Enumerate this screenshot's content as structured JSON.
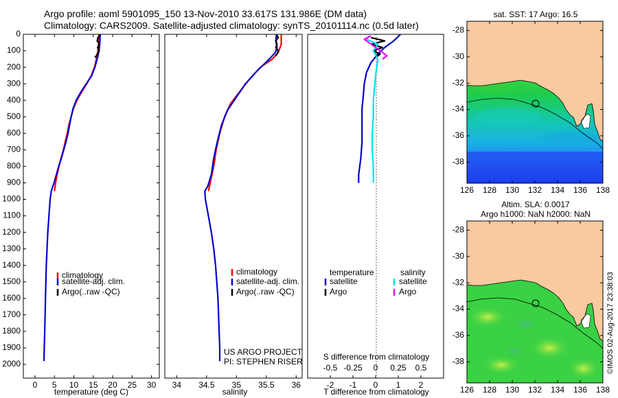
{
  "header": {
    "title_line1": "Argo profile: aoml 5901095_150 13-Nov-2010 33.617S 131.986E (DM data)",
    "title_line2": "Climatology: CARS2009. Satellite-adjusted climatology: synTS_20101114.nc (0.5d later)"
  },
  "panels": {
    "temperature": {
      "xlabel": "temperature (deg C)",
      "xticks": [
        0,
        5,
        10,
        15,
        20,
        25,
        30
      ],
      "xlim": [
        -3,
        32
      ],
      "legend": [
        "climatology",
        "satellite-adj. clim.",
        "Argo(..raw -QC)"
      ]
    },
    "salinity": {
      "xlabel": "salinity",
      "xticks": [
        34,
        34.5,
        35,
        35.5,
        36
      ],
      "xlim": [
        33.8,
        36.1
      ],
      "legend": [
        "climatology",
        "satellite-adj. clim.",
        "Argo(..raw -QC)"
      ],
      "credit_line1": "US ARGO PROJECT",
      "credit_line2": "PI: STEPHEN RISER"
    },
    "difference": {
      "s_label": "S difference from climatology",
      "t_label": "T difference from climatology",
      "s_ticks": [
        "-0.5",
        "-0.25",
        "0",
        "0.25",
        "0.5"
      ],
      "t_ticks": [
        "-2",
        "-1",
        "0",
        "1",
        "2"
      ],
      "legend_temp_title": "temperature",
      "legend_sal_title": "salinity",
      "legend_temp_items": [
        "satellite",
        "Argo"
      ],
      "legend_sal_items": [
        "satellite",
        "Argo"
      ]
    },
    "depth_ticks": [
      0,
      100,
      200,
      300,
      400,
      500,
      600,
      700,
      800,
      900,
      1000,
      1100,
      1200,
      1300,
      1400,
      1500,
      1600,
      1700,
      1800,
      1900,
      2000
    ]
  },
  "maps": {
    "sst_title": "sat. SST: 17 Argo: 16.5",
    "sla_title_line1": "Altim. SLA: 0.0017",
    "sla_title_line2": "Argo h1000: NaN h2000: NaN",
    "lat_ticks": [
      "-28",
      "-30",
      "-32",
      "-34",
      "-36",
      "-38"
    ],
    "lon_ticks": [
      "126",
      "128",
      "130",
      "132",
      "134",
      "136",
      "138"
    ],
    "land_color": "#f9c9a0",
    "watermark": "©IMOS 02-Aug-2017 23:38:03"
  },
  "colors": {
    "climatology": "#ff0000",
    "satellite": "#0000cc",
    "argo": "#000000",
    "sat_sal": "#00e5ee",
    "argo_sal": "#ff00ff"
  },
  "chart_data": [
    {
      "type": "line",
      "title": "",
      "xlabel": "temperature (deg C)",
      "ylabel": "",
      "xlim": [
        -3,
        32
      ],
      "ylim": [
        2000,
        0
      ],
      "series": [
        {
          "name": "climatology",
          "color": "#ff0000",
          "points": [
            [
              16.5,
              0
            ],
            [
              16.4,
              50
            ],
            [
              16.2,
              100
            ],
            [
              15.8,
              150
            ],
            [
              15.3,
              200
            ],
            [
              14.5,
              250
            ],
            [
              13.3,
              300
            ],
            [
              12.0,
              350
            ],
            [
              10.8,
              400
            ],
            [
              9.9,
              450
            ],
            [
              9.3,
              500
            ],
            [
              8.7,
              550
            ],
            [
              8.3,
              600
            ],
            [
              7.8,
              650
            ],
            [
              7.3,
              700
            ],
            [
              6.7,
              750
            ],
            [
              6.2,
              800
            ],
            [
              5.7,
              850
            ],
            [
              5.3,
              900
            ],
            [
              5.0,
              950
            ]
          ]
        },
        {
          "name": "satellite-adj. clim.",
          "color": "#0000cc",
          "points": [
            [
              16.8,
              0
            ],
            [
              16.7,
              50
            ],
            [
              16.5,
              100
            ],
            [
              16.0,
              150
            ],
            [
              15.4,
              200
            ],
            [
              14.6,
              250
            ],
            [
              13.2,
              300
            ],
            [
              11.8,
              350
            ],
            [
              10.6,
              400
            ],
            [
              9.8,
              450
            ],
            [
              9.3,
              500
            ],
            [
              8.9,
              550
            ],
            [
              8.5,
              600
            ],
            [
              8.0,
              650
            ],
            [
              7.4,
              700
            ],
            [
              6.8,
              750
            ],
            [
              6.1,
              800
            ],
            [
              5.5,
              850
            ],
            [
              4.9,
              900
            ],
            [
              4.2,
              950
            ],
            [
              3.9,
              1000
            ],
            [
              3.6,
              1100
            ],
            [
              3.3,
              1200
            ],
            [
              3.1,
              1300
            ],
            [
              2.9,
              1400
            ],
            [
              2.8,
              1500
            ],
            [
              2.7,
              1600
            ],
            [
              2.6,
              1700
            ],
            [
              2.5,
              1800
            ],
            [
              2.4,
              1900
            ],
            [
              2.3,
              1980
            ]
          ]
        },
        {
          "name": "Argo(..raw -QC)",
          "color": "#000000",
          "points": [
            [
              16.7,
              0
            ],
            [
              16.2,
              20
            ],
            [
              16.0,
              40
            ],
            [
              16.6,
              60
            ],
            [
              16.1,
              80
            ],
            [
              16.5,
              100
            ],
            [
              16.0,
              120
            ],
            [
              15.8,
              130
            ],
            [
              15.4,
              140
            ]
          ]
        }
      ]
    },
    {
      "type": "line",
      "title": "",
      "xlabel": "salinity",
      "ylabel": "",
      "xlim": [
        33.8,
        36.1
      ],
      "ylim": [
        2000,
        0
      ],
      "series": [
        {
          "name": "climatology",
          "color": "#ff0000",
          "points": [
            [
              35.75,
              0
            ],
            [
              35.75,
              60
            ],
            [
              35.7,
              110
            ],
            [
              35.6,
              150
            ],
            [
              35.4,
              200
            ],
            [
              35.2,
              280
            ],
            [
              35.05,
              350
            ],
            [
              34.9,
              420
            ],
            [
              34.8,
              500
            ],
            [
              34.72,
              600
            ],
            [
              34.66,
              700
            ],
            [
              34.62,
              800
            ],
            [
              34.56,
              900
            ],
            [
              34.53,
              950
            ]
          ]
        },
        {
          "name": "satellite-adj. clim.",
          "color": "#0000cc",
          "points": [
            [
              35.67,
              0
            ],
            [
              35.66,
              40
            ],
            [
              35.68,
              80
            ],
            [
              35.65,
              110
            ],
            [
              35.55,
              150
            ],
            [
              35.35,
              220
            ],
            [
              35.15,
              300
            ],
            [
              35.0,
              380
            ],
            [
              34.85,
              460
            ],
            [
              34.75,
              550
            ],
            [
              34.68,
              650
            ],
            [
              34.62,
              750
            ],
            [
              34.58,
              850
            ],
            [
              34.52,
              920
            ],
            [
              34.47,
              950
            ],
            [
              34.48,
              1000
            ],
            [
              34.53,
              1100
            ],
            [
              34.58,
              1200
            ],
            [
              34.62,
              1300
            ],
            [
              34.65,
              1400
            ],
            [
              34.67,
              1500
            ],
            [
              34.69,
              1600
            ],
            [
              34.7,
              1700
            ],
            [
              34.71,
              1800
            ],
            [
              34.72,
              1900
            ],
            [
              34.72,
              1980
            ]
          ]
        },
        {
          "name": "Argo(..raw -QC)",
          "color": "#000000",
          "points": [
            [
              35.67,
              0
            ],
            [
              35.7,
              20
            ],
            [
              35.66,
              40
            ],
            [
              35.68,
              60
            ],
            [
              35.66,
              80
            ],
            [
              35.7,
              100
            ],
            [
              35.68,
              120
            ],
            [
              35.65,
              130
            ]
          ]
        }
      ]
    },
    {
      "type": "line",
      "title": "",
      "xlabel": "T difference from climatology",
      "ylabel": "",
      "xlim": [
        -3,
        3
      ],
      "ylim": [
        2000,
        0
      ],
      "series": [
        {
          "name": "temperature satellite",
          "color": "#0000cc",
          "points": [
            [
              1.1,
              0
            ],
            [
              0.8,
              40
            ],
            [
              0.4,
              80
            ],
            [
              0.1,
              120
            ],
            [
              -0.2,
              170
            ],
            [
              -0.4,
              230
            ],
            [
              -0.5,
              300
            ],
            [
              -0.55,
              380
            ],
            [
              -0.6,
              450
            ],
            [
              -0.6,
              550
            ],
            [
              -0.6,
              650
            ],
            [
              -0.65,
              750
            ],
            [
              -0.7,
              800
            ],
            [
              -0.75,
              850
            ],
            [
              -0.75,
              900
            ]
          ]
        },
        {
          "name": "temperature Argo",
          "color": "#000000",
          "points": [
            [
              -0.2,
              20
            ],
            [
              0.4,
              40
            ],
            [
              -0.2,
              60
            ],
            [
              0.3,
              80
            ],
            [
              -0.1,
              100
            ],
            [
              0.2,
              120
            ],
            [
              0.0,
              140
            ]
          ]
        },
        {
          "name": "salinity satellite",
          "color": "#00e5ee",
          "points": [
            [
              -0.3,
              10
            ],
            [
              -0.4,
              30
            ],
            [
              0.1,
              60
            ],
            [
              -0.1,
              100
            ],
            [
              0.1,
              150
            ],
            [
              0.0,
              250
            ],
            [
              -0.1,
              400
            ],
            [
              -0.1,
              500
            ],
            [
              -0.15,
              600
            ],
            [
              -0.15,
              700
            ],
            [
              -0.1,
              800
            ],
            [
              -0.1,
              900
            ]
          ]
        },
        {
          "name": "salinity Argo",
          "color": "#ff00ff",
          "points": [
            [
              -0.2,
              10
            ],
            [
              -0.5,
              30
            ],
            [
              -0.2,
              60
            ],
            [
              0.2,
              100
            ],
            [
              0.5,
              130
            ],
            [
              0.3,
              150
            ]
          ]
        }
      ]
    }
  ]
}
